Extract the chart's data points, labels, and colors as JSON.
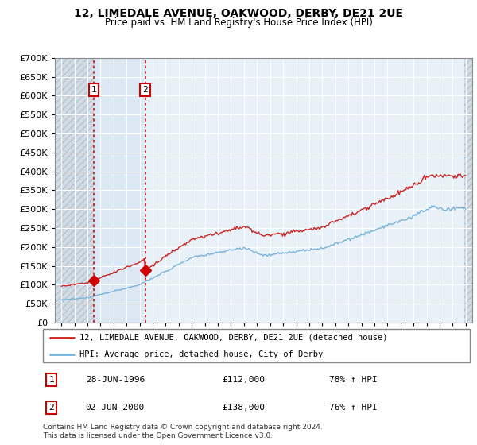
{
  "title_line1": "12, LIMEDALE AVENUE, OAKWOOD, DERBY, DE21 2UE",
  "title_line2": "Price paid vs. HM Land Registry's House Price Index (HPI)",
  "legend_label1": "12, LIMEDALE AVENUE, OAKWOOD, DERBY, DE21 2UE (detached house)",
  "legend_label2": "HPI: Average price, detached house, City of Derby",
  "transaction1_date": "28-JUN-1996",
  "transaction1_price": "£112,000",
  "transaction1_hpi": "78% ↑ HPI",
  "transaction1_year": 1996.49,
  "transaction1_value": 112000,
  "transaction2_date": "02-JUN-2000",
  "transaction2_price": "£138,000",
  "transaction2_hpi": "76% ↑ HPI",
  "transaction2_year": 2000.42,
  "transaction2_value": 138000,
  "footnote": "Contains HM Land Registry data © Crown copyright and database right 2024.\nThis data is licensed under the Open Government Licence v3.0.",
  "hpi_color": "#7ab4d8",
  "price_color": "#cc2222",
  "marker_color": "#cc0000",
  "vline_color": "#cc0000",
  "ylim_max": 700000,
  "ytick_step": 50000,
  "xmin": 1993.5,
  "xmax": 2025.5,
  "plot_bg_color": "#e8f0f8",
  "hatch_bg_color": "#d0dde8",
  "between_color": "#dce8f4",
  "grid_color": "#ffffff",
  "background_color": "#ffffff"
}
